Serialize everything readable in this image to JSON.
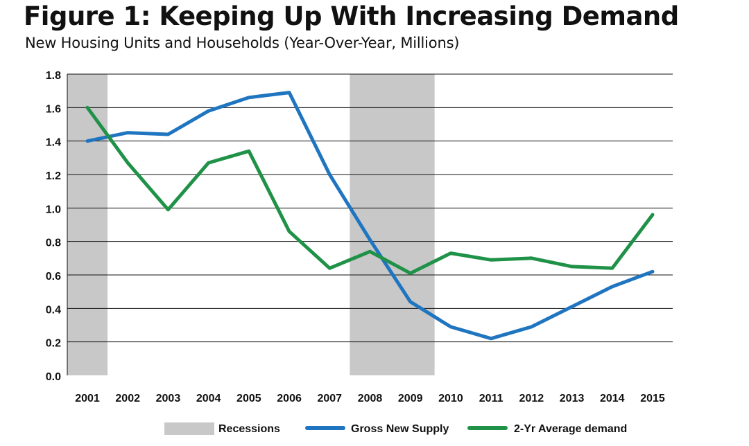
{
  "chart_data": {
    "type": "line",
    "title": "Figure 1: Keeping Up With Increasing Demand",
    "subtitle": "New Housing Units and Households (Year-Over-Year, Millions)",
    "xlabel": "",
    "ylabel": "",
    "categories": [
      "2001",
      "2002",
      "2003",
      "2004",
      "2005",
      "2006",
      "2007",
      "2008",
      "2009",
      "2010",
      "2011",
      "2012",
      "2013",
      "2014",
      "2015"
    ],
    "yticks": [
      "0.0",
      "0.2",
      "0.4",
      "0.6",
      "0.8",
      "1.0",
      "1.2",
      "1.4",
      "1.6",
      "1.8"
    ],
    "ylim": [
      0,
      1.8
    ],
    "grid": true,
    "legend_position": "bottom",
    "recessions_label": "Recessions",
    "recessions": [
      {
        "start": 2000.5,
        "end": 2001.5
      },
      {
        "start": 2007.5,
        "end": 2009.6
      }
    ],
    "series": [
      {
        "name": "Gross New Supply",
        "color": "#1f75c0",
        "values": [
          1.4,
          1.45,
          1.44,
          1.58,
          1.66,
          1.69,
          1.2,
          0.81,
          0.44,
          0.29,
          0.22,
          0.29,
          0.41,
          0.53,
          0.62
        ]
      },
      {
        "name": "2-Yr Average demand",
        "color": "#1f9248",
        "values": [
          1.6,
          1.27,
          0.99,
          1.27,
          1.34,
          0.86,
          0.64,
          0.74,
          0.61,
          0.73,
          0.69,
          0.7,
          0.65,
          0.64,
          0.96
        ]
      }
    ],
    "recession_color": "#c8c8c8",
    "gridline_color": "#111111"
  }
}
